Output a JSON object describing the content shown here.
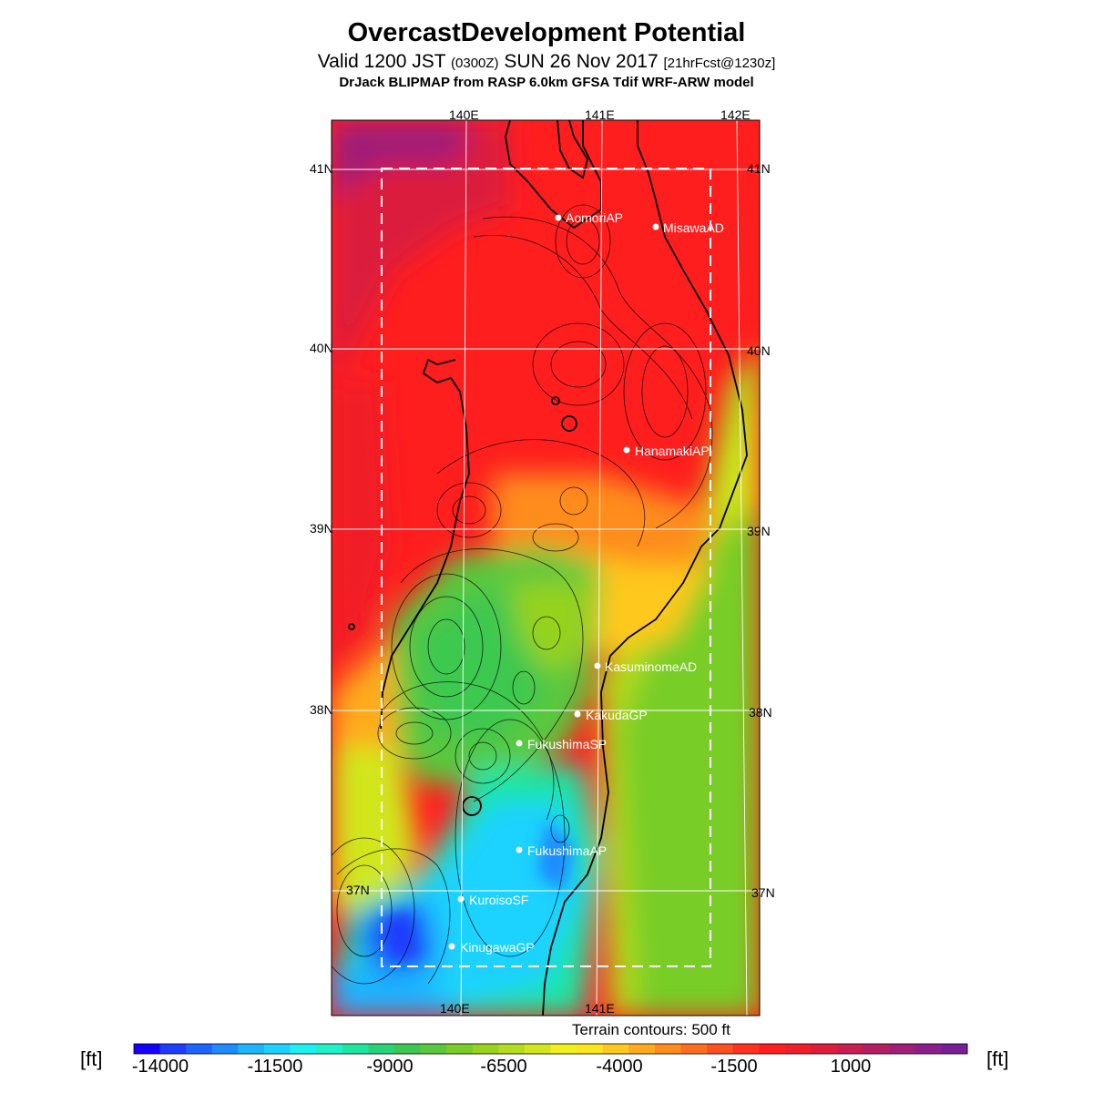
{
  "header": {
    "title": "OvercastDevelopment Potential",
    "valid_main": "Valid 1200 JST",
    "valid_z": "(0300Z)",
    "valid_date": "SUN 26 Nov 2017",
    "valid_fcst": "[21hrFcst@1230z]",
    "model_line": "DrJack BLIPMAP from RASP 6.0km GFSA Tdif WRF-ARW model"
  },
  "map": {
    "lon_labels": [
      "140E",
      "141E",
      "142E"
    ],
    "lat_labels": [
      "41N",
      "40N",
      "39N",
      "38N",
      "37N"
    ],
    "stations": [
      {
        "name": "AomoriAP"
      },
      {
        "name": "MisawaAD"
      },
      {
        "name": "HanamakiAP"
      },
      {
        "name": "KasuminomeAD"
      },
      {
        "name": "KakudaGP"
      },
      {
        "name": "FukushimaSP"
      },
      {
        "name": "FukushimaAP"
      },
      {
        "name": "KuroisoSF"
      },
      {
        "name": "KinugawaGP"
      }
    ],
    "terrain_note": "Terrain contours: 500 ft"
  },
  "colorbar": {
    "unit_left": "[ft]",
    "unit_right": "[ft]",
    "ticks": [
      "-14000",
      "-11500",
      "-9000",
      "-6500",
      "-4000",
      "-1500",
      "1000"
    ],
    "colors": [
      "#1400ff",
      "#1e3cff",
      "#1e64ff",
      "#1e8cff",
      "#1eb4ff",
      "#1ed2ff",
      "#1ef0f0",
      "#1ef0c8",
      "#1ee6a0",
      "#28d278",
      "#3cc850",
      "#5ac83c",
      "#78cd28",
      "#96d21e",
      "#b4dc1e",
      "#d2e61e",
      "#f0f01e",
      "#fae61e",
      "#ffc81e",
      "#ffaa1e",
      "#ff8c1e",
      "#ff6e1e",
      "#ff501e",
      "#ff321e",
      "#ff1e1e",
      "#f01e28",
      "#dc1e3c",
      "#c81e50",
      "#b41e64",
      "#a01e78",
      "#8c1e8c",
      "#781e96"
    ]
  }
}
